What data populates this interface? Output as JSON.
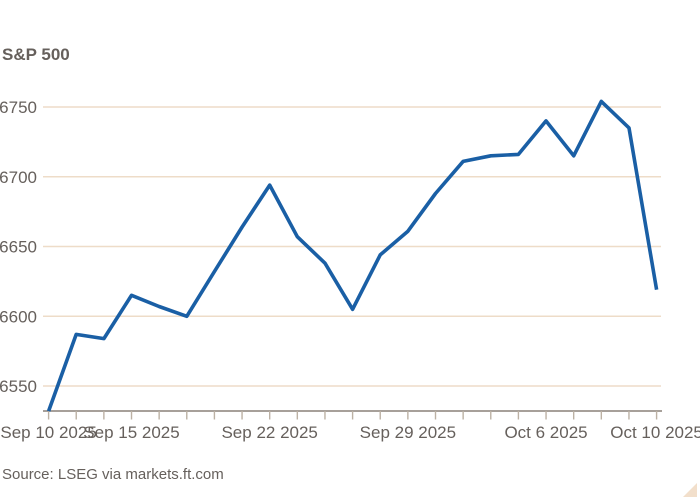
{
  "title": "S&P 500",
  "source": "Source: LSEG via markets.ft.com",
  "logo": "ft-expand-triangle-icon",
  "colors": {
    "line": "#1A5FA5",
    "grid": "#EEDCC8",
    "axis": "#8A8178",
    "tick": "#BCB1A4",
    "text": "#66605C",
    "logo_triangle": "#F2DFCB",
    "background": "#FFFFFF"
  },
  "chart_data": {
    "type": "line",
    "title": "S&P 500",
    "xlabel": "",
    "ylabel": "",
    "grid": true,
    "legend_position": "none",
    "ylim": [
      6532,
      6765
    ],
    "yticks": [
      6550,
      6600,
      6650,
      6700,
      6750
    ],
    "x": [
      "Sep 10 2025",
      "Sep 11 2025",
      "Sep 12 2025",
      "Sep 15 2025",
      "Sep 16 2025",
      "Sep 17 2025",
      "Sep 18 2025",
      "Sep 19 2025",
      "Sep 22 2025",
      "Sep 23 2025",
      "Sep 24 2025",
      "Sep 25 2025",
      "Sep 26 2025",
      "Sep 29 2025",
      "Sep 30 2025",
      "Oct 1 2025",
      "Oct 2 2025",
      "Oct 3 2025",
      "Oct 6 2025",
      "Oct 7 2025",
      "Oct 8 2025",
      "Oct 9 2025",
      "Oct 10 2025"
    ],
    "values": [
      6532,
      6587,
      6584,
      6615,
      6607,
      6600,
      6632,
      6664,
      6694,
      6657,
      6638,
      6605,
      6644,
      6661,
      6688,
      6711,
      6715,
      6716,
      6740,
      6715,
      6754,
      6735,
      6619
    ],
    "xtick_labels": [
      {
        "index": 0,
        "label": "Sep 10 2025"
      },
      {
        "index": 3,
        "label": "Sep 15 2025"
      },
      {
        "index": 8,
        "label": "Sep 22 2025"
      },
      {
        "index": 13,
        "label": "Sep 29 2025"
      },
      {
        "index": 18,
        "label": "Oct 6 2025"
      },
      {
        "index": 22,
        "label": "Oct 10 2025"
      }
    ]
  }
}
